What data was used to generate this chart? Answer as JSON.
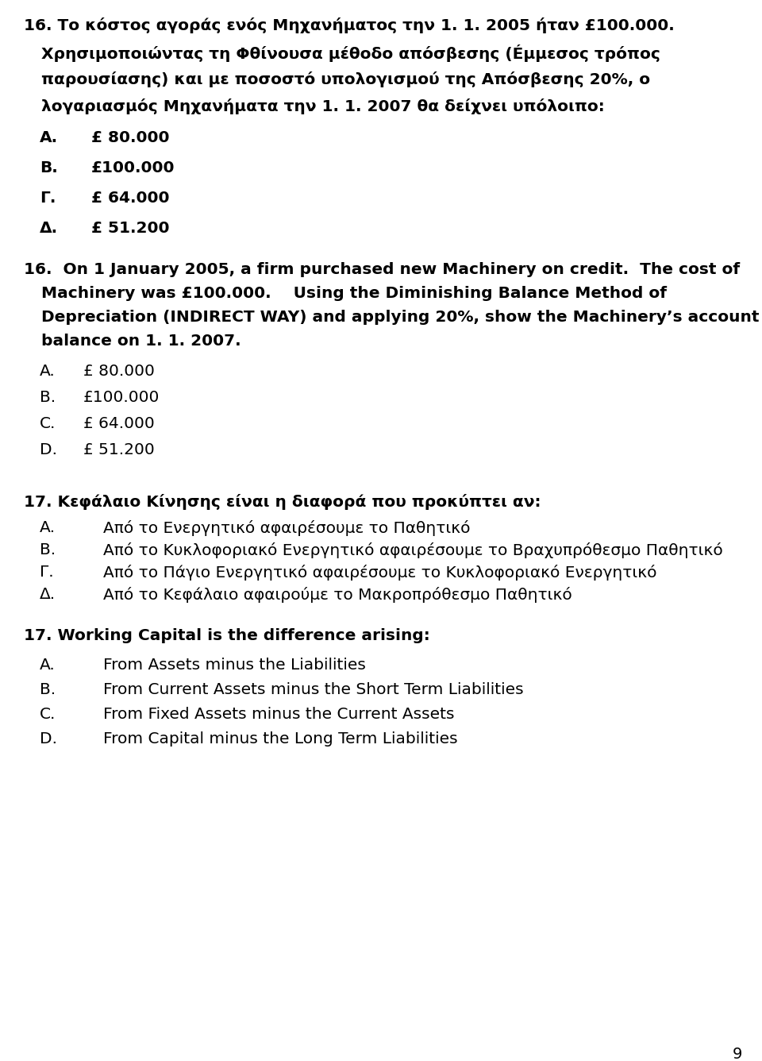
{
  "background_color": "#ffffff",
  "page_number": "9",
  "q16_greek_line1": "16. Το κόστος αγοράς ενός Μηχανήματος την 1. 1. 2005 ήταν £100.000.",
  "q16_greek_line2": "Χρησιμοποιώντας τη Φθίνουσα μέθοδο απόσβεσης (Éμμεσος τρόπος",
  "q16_greek_line3": "παρουσίασης) και με ποσοστό υπολογισμού της Απόσβεσης 20%, ο",
  "q16_greek_line4": "λογαριασμός Μηχανήματα την 1. 1. 2007 θα δείχνει υπόλοιπο:",
  "q16_greek_A_label": "Α.",
  "q16_greek_A_val": "£ 80.000",
  "q16_greek_B_label": "Β.",
  "q16_greek_B_val": "£100.000",
  "q16_greek_C_label": "Γ.",
  "q16_greek_C_val": "£ 64.000",
  "q16_greek_D_label": "Δ.",
  "q16_greek_D_val": "£ 51.200",
  "q16_en_line1": "16.  On 1 January 2005, a firm purchased new Machinery on credit.  The cost of",
  "q16_en_line2": "Machinery was £100.000.    Using the Diminishing Balance Method of",
  "q16_en_line3": "Depreciation (INDIRECT WAY) and applying 20%, show the Machinery’s account",
  "q16_en_line4": "balance on 1. 1. 2007.",
  "q16_en_A_label": "A.",
  "q16_en_A_val": "£ 80.000",
  "q16_en_B_label": "B.",
  "q16_en_B_val": "£100.000",
  "q16_en_C_label": "C.",
  "q16_en_C_val": "£ 64.000",
  "q16_en_D_label": "D.",
  "q16_en_D_val": "£ 51.200",
  "q17_greek_line1": "17. Κεφάλαιο Κίνησης είναι η διαφορά που προκύπτει αν:",
  "q17_greek_A_label": "Α.",
  "q17_greek_A_val": "Από το Ενεργητικό αφαιρέσουμε το Παθητικό",
  "q17_greek_B_label": "Β.",
  "q17_greek_B_val": "Από το Κυκλοφοριακό Ενεργητικό αφαιρέσουμε το Βραχυπρόθεσμο Παθητικό",
  "q17_greek_C_label": "Γ.",
  "q17_greek_C_val": "Από το Πάγιο Ενεργητικό αφαιρέσουμε το Κυκλοφοριακό Ενεργητικό",
  "q17_greek_D_label": "Δ.",
  "q17_greek_D_val": "Από το Κεφάλαιο αφαιρούμε το Μακροπρόθεσμο Παθητικό",
  "q17_en_line1": "17. Working Capital is the difference arising:",
  "q17_en_A_label": "A.",
  "q17_en_A_val": "From Assets minus the Liabilities",
  "q17_en_B_label": "B.",
  "q17_en_B_val": "From Current Assets minus the Short Term Liabilities",
  "q17_en_C_label": "C.",
  "q17_en_C_val": "From Fixed Assets minus the Current Assets",
  "q17_en_D_label": "D.",
  "q17_en_D_val": "From Capital minus the Long Term Liabilities"
}
